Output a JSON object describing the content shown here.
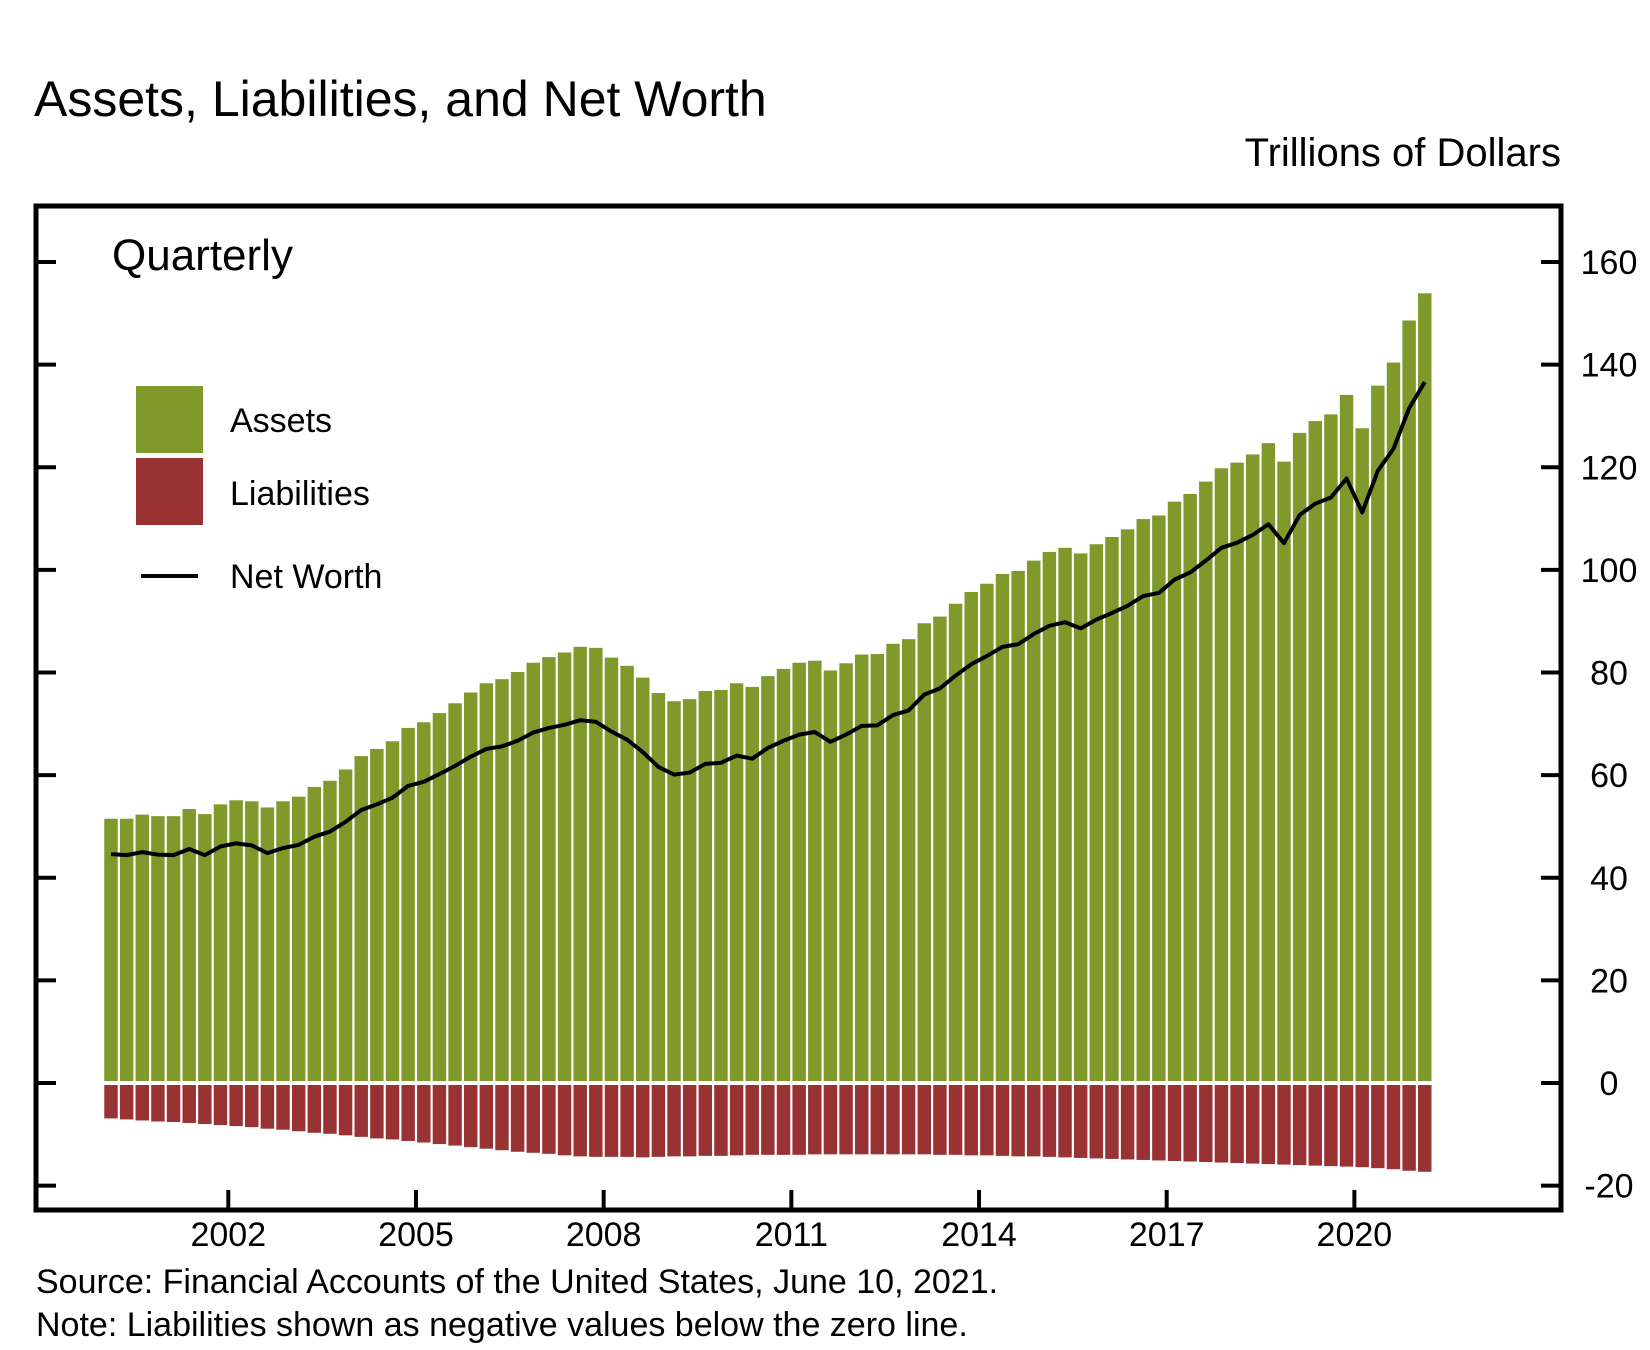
{
  "chart_data": {
    "type": "bar",
    "title": "Assets, Liabilities, and Net Worth",
    "unit_label": "Trillions of Dollars",
    "frequency_label": "Quarterly",
    "source": "Source: Financial Accounts of the United States, June 10, 2021.",
    "note": "Note: Liabilities shown as negative values below the zero line.",
    "x_start": "2000Q1",
    "x_end": "2021Q1",
    "x_ticks": [
      "2002",
      "2005",
      "2008",
      "2011",
      "2014",
      "2017",
      "2020"
    ],
    "ylim": [
      -22,
      170
    ],
    "y_ticks": [
      -20,
      0,
      20,
      40,
      60,
      80,
      100,
      120,
      140,
      160
    ],
    "grid": false,
    "legend_position": "top-left",
    "legend": [
      {
        "key": "assets",
        "label": "Assets",
        "kind": "bar"
      },
      {
        "key": "liabilities",
        "label": "Liabilities",
        "kind": "bar"
      },
      {
        "key": "net_worth",
        "label": "Net Worth",
        "kind": "line"
      }
    ],
    "colors": {
      "assets": "#7f9a2b",
      "liabilities": "#993333",
      "net_worth": "#000000"
    },
    "series": [
      {
        "name": "Assets",
        "type": "bar",
        "values": [
          51.5,
          51.5,
          52.3,
          52.0,
          52.0,
          53.4,
          52.4,
          54.3,
          55.1,
          54.9,
          53.7,
          54.9,
          55.8,
          57.7,
          58.9,
          61.1,
          63.7,
          65.1,
          66.6,
          69.2,
          70.3,
          72.1,
          74.0,
          76.1,
          77.9,
          78.7,
          80.1,
          81.9,
          83.0,
          83.9,
          85.0,
          84.8,
          82.9,
          81.3,
          79.0,
          76.0,
          74.4,
          74.8,
          76.4,
          76.6,
          77.9,
          77.2,
          79.3,
          80.7,
          81.9,
          82.3,
          80.4,
          81.8,
          83.5,
          83.6,
          85.6,
          86.5,
          89.6,
          90.9,
          93.4,
          95.7,
          97.3,
          99.2,
          99.8,
          101.8,
          103.5,
          104.3,
          103.2,
          105.0,
          106.4,
          107.9,
          109.9,
          110.6,
          113.3,
          114.8,
          117.2,
          119.8,
          120.9,
          122.5,
          124.7,
          121.1,
          126.7,
          129.0,
          130.3,
          134.1,
          127.6,
          135.9,
          140.4,
          148.6,
          153.9
        ]
      },
      {
        "name": "Liabilities",
        "type": "bar",
        "values": [
          -6.9,
          -7.1,
          -7.3,
          -7.5,
          -7.6,
          -7.8,
          -8.0,
          -8.2,
          -8.4,
          -8.6,
          -8.9,
          -9.1,
          -9.4,
          -9.7,
          -9.9,
          -10.2,
          -10.5,
          -10.8,
          -11.0,
          -11.3,
          -11.6,
          -11.9,
          -12.2,
          -12.5,
          -12.8,
          -13.1,
          -13.4,
          -13.6,
          -13.8,
          -14.1,
          -14.3,
          -14.4,
          -14.4,
          -14.4,
          -14.5,
          -14.4,
          -14.3,
          -14.3,
          -14.2,
          -14.2,
          -14.1,
          -14.0,
          -14.0,
          -14.0,
          -14.0,
          -13.9,
          -13.9,
          -13.9,
          -13.9,
          -13.9,
          -13.9,
          -13.9,
          -13.9,
          -14.0,
          -14.0,
          -14.1,
          -14.1,
          -14.2,
          -14.3,
          -14.3,
          -14.4,
          -14.5,
          -14.6,
          -14.7,
          -14.8,
          -14.9,
          -15.0,
          -15.1,
          -15.2,
          -15.3,
          -15.4,
          -15.5,
          -15.6,
          -15.7,
          -15.8,
          -15.9,
          -16.0,
          -16.1,
          -16.2,
          -16.3,
          -16.4,
          -16.6,
          -16.8,
          -17.1,
          -17.3
        ]
      },
      {
        "name": "Net Worth",
        "type": "line",
        "values": [
          44.6,
          44.4,
          45.0,
          44.5,
          44.4,
          45.6,
          44.4,
          46.1,
          46.7,
          46.3,
          44.8,
          45.8,
          46.4,
          48.0,
          49.0,
          50.9,
          53.2,
          54.3,
          55.6,
          57.9,
          58.7,
          60.2,
          61.8,
          63.6,
          65.1,
          65.6,
          66.7,
          68.3,
          69.2,
          69.8,
          70.7,
          70.4,
          68.5,
          66.9,
          64.5,
          61.6,
          60.1,
          60.5,
          62.2,
          62.4,
          63.8,
          63.2,
          65.3,
          66.7,
          67.9,
          68.4,
          66.5,
          67.9,
          69.6,
          69.7,
          71.7,
          72.6,
          75.7,
          76.9,
          79.4,
          81.6,
          83.2,
          85.0,
          85.5,
          87.5,
          89.1,
          89.8,
          88.6,
          90.3,
          91.6,
          93.0,
          94.9,
          95.5,
          98.1,
          99.5,
          101.8,
          104.3,
          105.3,
          106.8,
          108.9,
          105.2,
          110.7,
          112.9,
          114.1,
          117.8,
          111.2,
          119.3,
          123.6,
          131.5,
          136.6
        ]
      }
    ]
  }
}
